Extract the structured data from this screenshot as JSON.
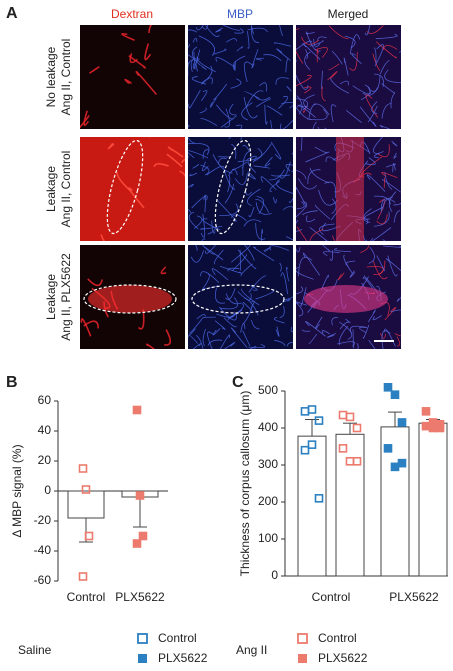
{
  "panel_labels": [
    "A",
    "B",
    "C"
  ],
  "panel_a": {
    "columns": [
      "Dextran",
      "MBP",
      "Merged"
    ],
    "rows": [
      [
        "No leakage",
        "Ang II, Control"
      ],
      [
        "Leakage",
        "Ang II, Control"
      ],
      [
        "Leakage",
        "Ang II, PLX5622"
      ]
    ]
  },
  "chart_data": [
    {
      "type": "bar",
      "y_label": "Δ MBP signal (%)",
      "categories": [
        "Control",
        "PLX5622"
      ],
      "values": [
        -18,
        -4
      ],
      "errors": [
        16,
        20
      ],
      "points": [
        [
          15,
          1,
          -30,
          -57
        ],
        [
          54,
          -3,
          -30,
          -35
        ]
      ],
      "point_color": "#ec7b6e",
      "filled": [
        false,
        true
      ],
      "ylim": [
        -60,
        60
      ],
      "yticks": [
        -60,
        -40,
        -20,
        0,
        20,
        40,
        60
      ]
    },
    {
      "type": "grouped_bar",
      "y_label": "Thickness of corpus callosum (μm)",
      "categories": [
        "Control",
        "PLX5622"
      ],
      "filled": [
        false,
        true
      ],
      "series": [
        {
          "name": "Saline",
          "color": "#2b80c2",
          "values": [
            378,
            403
          ],
          "errors": [
            45,
            40
          ],
          "points": [
            [
              445,
              450,
              420,
              340,
              355,
              210
            ],
            [
              510,
              490,
              415,
              345,
              295,
              305
            ]
          ]
        },
        {
          "name": "Ang II",
          "color": "#ec7b6e",
          "values": [
            383,
            413
          ],
          "errors": [
            30,
            10
          ],
          "points": [
            [
              435,
              430,
              400,
              345,
              310,
              310
            ],
            [
              445,
              415,
              410,
              405,
              400,
              400
            ]
          ]
        }
      ],
      "ylim": [
        0,
        500
      ],
      "yticks": [
        0,
        100,
        200,
        300,
        400,
        500
      ]
    }
  ]
}
